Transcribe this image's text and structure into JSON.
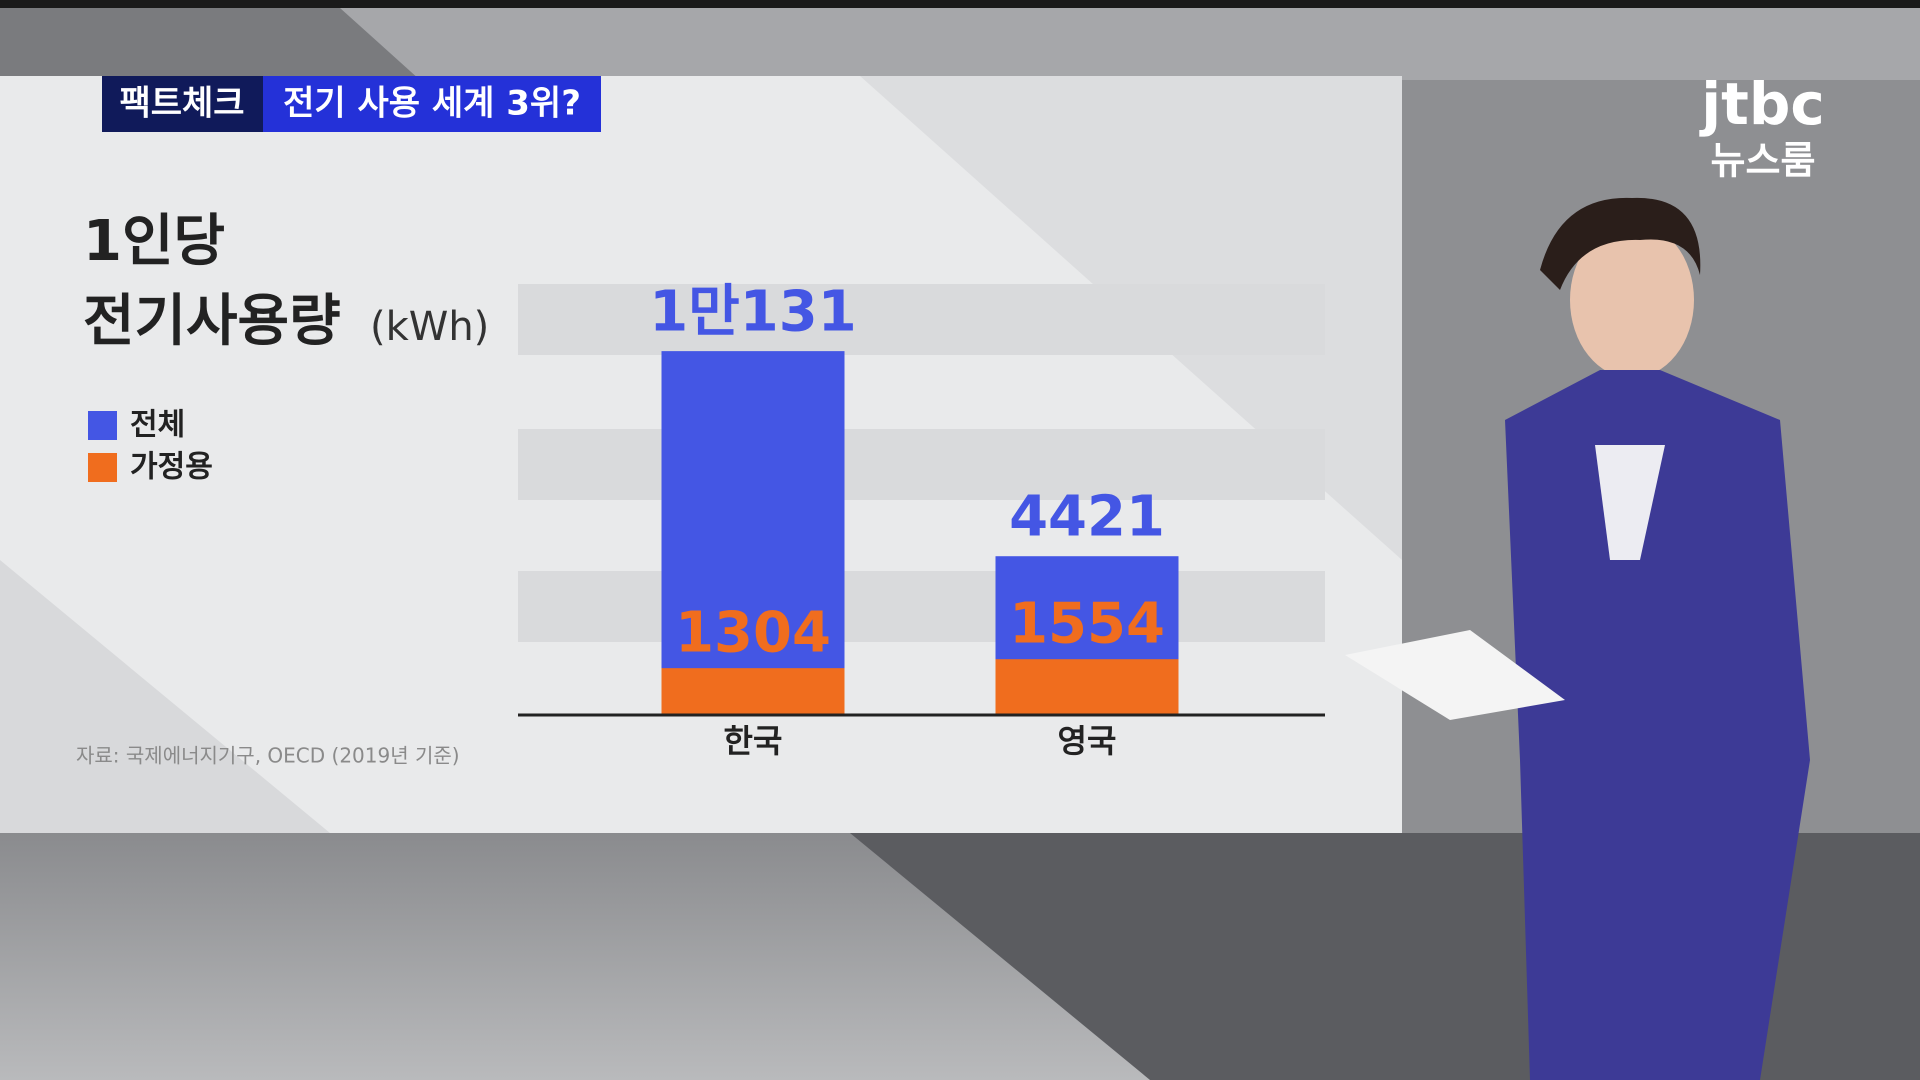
{
  "banner": {
    "tag": "팩트체크",
    "headline": "전기 사용 세계 3위?"
  },
  "logo": {
    "brand": "jtbc",
    "program": "뉴스룸"
  },
  "chart_data": {
    "type": "bar",
    "title_lines": [
      "1인당",
      "전기사용량"
    ],
    "unit": "(kWh)",
    "categories": [
      "한국",
      "영국"
    ],
    "series": [
      {
        "name": "전체",
        "color": "#4456e4",
        "values": [
          10131,
          4421
        ],
        "value_labels": [
          "1만131",
          "4421"
        ]
      },
      {
        "name": "가정용",
        "color": "#f06d1e",
        "values": [
          1304,
          1554
        ]
      }
    ],
    "ylim": [
      0,
      12000
    ],
    "source": "자료: 국제에너지기구, OECD (2019년 기준)"
  }
}
